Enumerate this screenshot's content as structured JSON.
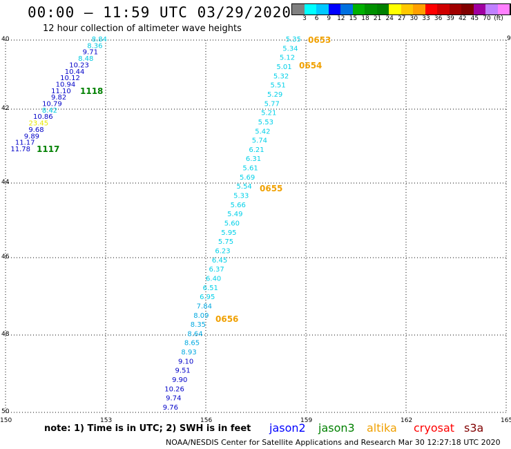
{
  "title": "00:00 – 11:59 UTC 03/29/2020",
  "subtitle": "12 hour collection of altimeter wave heights",
  "colorbar": {
    "unit": "(ft)",
    "colors": [
      "#808080",
      "#00ffff",
      "#00c8ff",
      "#0000ff",
      "#0070e0",
      "#00b000",
      "#009000",
      "#008000",
      "#ffff00",
      "#ffc800",
      "#ffa000",
      "#ff0000",
      "#d00000",
      "#a00000",
      "#800000",
      "#a000a0",
      "#c080ff",
      "#ff80ff",
      "#000000"
    ],
    "labels": [
      "3",
      "6",
      "9",
      "12",
      "15",
      "18",
      "21",
      "24",
      "27",
      "30",
      "33",
      "36",
      "39",
      "42",
      "45",
      "70"
    ]
  },
  "lat_labels": [
    "40",
    "42",
    "44",
    "46",
    "48",
    "50"
  ],
  "lon_labels": [
    "150",
    "153",
    "156",
    "159",
    "162",
    "165"
  ],
  "extra_label": "9",
  "tracks": [
    {
      "satellite": "jason2",
      "color": "#0000c8",
      "points": [
        {
          "v": "8.84",
          "c": "#00c8e0"
        },
        {
          "v": "8.36",
          "c": "#00c8e0"
        },
        {
          "v": "9.71",
          "c": "#0000c8"
        },
        {
          "v": "8.48",
          "c": "#00c8e0"
        },
        {
          "v": "10.23",
          "c": "#0000c8"
        },
        {
          "v": "10.44",
          "c": "#0000c8"
        },
        {
          "v": "10.12",
          "c": "#0000c8"
        },
        {
          "v": "10.94",
          "c": "#0000c8"
        },
        {
          "v": "11.10",
          "c": "#0000c8"
        },
        {
          "v": "9.82",
          "c": "#0000c8"
        },
        {
          "v": "10.79",
          "c": "#0000c8"
        },
        {
          "v": "8.42",
          "c": "#00c8e0"
        },
        {
          "v": "10.86",
          "c": "#0000c8"
        },
        {
          "v": "23.45",
          "c": "#e8e800"
        },
        {
          "v": "9.68",
          "c": "#0000c8"
        },
        {
          "v": "9.89",
          "c": "#0000c8"
        },
        {
          "v": "11.17",
          "c": "#0000c8"
        },
        {
          "v": "11.78",
          "c": "#0000c8"
        }
      ],
      "times": [
        {
          "label": "1118",
          "color": "#008000"
        },
        {
          "label": "1117",
          "color": "#008000"
        }
      ]
    },
    {
      "satellite": "altika",
      "points": [
        {
          "v": "5.35",
          "c": "#00d0e8"
        },
        {
          "v": "5.34",
          "c": "#00d0e8"
        },
        {
          "v": "5.12",
          "c": "#00d0e8"
        },
        {
          "v": "5.01",
          "c": "#00d0e8"
        },
        {
          "v": "5.32",
          "c": "#00d0e8"
        },
        {
          "v": "5.51",
          "c": "#00d0e8"
        },
        {
          "v": "5.29",
          "c": "#00d0e8"
        },
        {
          "v": "5.77",
          "c": "#00d0e8"
        },
        {
          "v": "5.21",
          "c": "#00d0e8"
        },
        {
          "v": "5.53",
          "c": "#00d0e8"
        },
        {
          "v": "5.42",
          "c": "#00d0e8"
        },
        {
          "v": "5.74",
          "c": "#00d0e8"
        },
        {
          "v": "6.21",
          "c": "#00d0e8"
        },
        {
          "v": "6.31",
          "c": "#00d0e8"
        },
        {
          "v": "5.61",
          "c": "#00d0e8"
        },
        {
          "v": "5.69",
          "c": "#00d0e8"
        },
        {
          "v": "5.54",
          "c": "#00d0e8"
        },
        {
          "v": "5.33",
          "c": "#00d0e8"
        },
        {
          "v": "5.66",
          "c": "#00d0e8"
        },
        {
          "v": "5.49",
          "c": "#00d0e8"
        },
        {
          "v": "5.60",
          "c": "#00d0e8"
        },
        {
          "v": "5.95",
          "c": "#00d0e8"
        },
        {
          "v": "5.75",
          "c": "#00d0e8"
        },
        {
          "v": "6.23",
          "c": "#00d0e8"
        },
        {
          "v": "6.45",
          "c": "#00d0e8"
        },
        {
          "v": "6.37",
          "c": "#00d0e8"
        },
        {
          "v": "6.40",
          "c": "#00d0e8"
        },
        {
          "v": "6.51",
          "c": "#00d0e8"
        },
        {
          "v": "6.95",
          "c": "#00d0e8"
        },
        {
          "v": "7.84",
          "c": "#00a8e0"
        },
        {
          "v": "8.09",
          "c": "#00a8e0"
        },
        {
          "v": "8.35",
          "c": "#00a8e0"
        },
        {
          "v": "8.64",
          "c": "#00a8e0"
        },
        {
          "v": "8.65",
          "c": "#00a8e0"
        },
        {
          "v": "8.93",
          "c": "#00a8e0"
        },
        {
          "v": "9.10",
          "c": "#0000c8"
        },
        {
          "v": "9.51",
          "c": "#0000c8"
        },
        {
          "v": "9.90",
          "c": "#0000c8"
        },
        {
          "v": "10.26",
          "c": "#0000c8"
        },
        {
          "v": "9.74",
          "c": "#0000c8"
        },
        {
          "v": "9.76",
          "c": "#0000c8"
        }
      ],
      "times": [
        {
          "label": "0653",
          "color": "#f0a000"
        },
        {
          "label": "0654",
          "color": "#f0a000"
        },
        {
          "label": "0655",
          "color": "#f0a000"
        },
        {
          "label": "0656",
          "color": "#f0a000"
        }
      ]
    }
  ],
  "note": "note:  1) Time is in UTC;  2) SWH is in feet",
  "legend": [
    {
      "name": "jason2",
      "color": "#0000ff"
    },
    {
      "name": "jason3",
      "color": "#008000"
    },
    {
      "name": "altika",
      "color": "#f0a000"
    },
    {
      "name": "cryosat",
      "color": "#ff0000"
    },
    {
      "name": "s3a",
      "color": "#800000"
    }
  ],
  "footer": "NOAA/NESDIS Center for Satellite Applications and Research    Mar 30 12:27:18 UTC 2020"
}
